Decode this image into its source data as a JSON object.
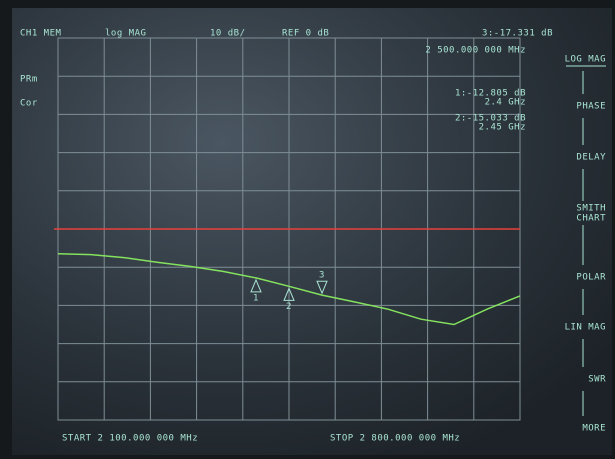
{
  "chart_data": {
    "type": "line",
    "header": {
      "channel": "CH1 MEM",
      "format": "log MAG",
      "scale": "10 dB/",
      "reference": "REF 0 dB",
      "active_marker": "3:-17.331 dB",
      "active_marker_freq": "2 500.000 000 MHz"
    },
    "status": [
      "PRm",
      "Cor"
    ],
    "start_label": "START 2 100.000 000 MHz",
    "stop_label": "STOP 2 800.000 000 MHz",
    "xlim": [
      2100,
      2800
    ],
    "ylim": [
      -50,
      50
    ],
    "reference_line": {
      "value": 0,
      "color": "#e8403a"
    },
    "series": [
      {
        "color": "#84e25e",
        "x": [
          2100,
          2150,
          2200,
          2250,
          2300,
          2350,
          2400,
          2450,
          2500,
          2550,
          2600,
          2650,
          2700,
          2750,
          2800
        ],
        "values": [
          -6.5,
          -6.7,
          -7.5,
          -8.7,
          -9.8,
          -11.1,
          -12.8,
          -15.0,
          -17.3,
          -19.1,
          -21.0,
          -23.6,
          -25.0,
          -21.0,
          -17.5
        ]
      }
    ],
    "markers": [
      {
        "label": "1",
        "x": 2400,
        "value": -12.805,
        "readout": "1:-12.805 dB",
        "freq": "2.4 GHz"
      },
      {
        "label": "2",
        "x": 2450,
        "value": -15.033,
        "readout": "2:-15.033 dB",
        "freq": "2.45 GHz"
      },
      {
        "label": "3",
        "x": 2500,
        "value": -17.331
      }
    ],
    "softkeys": [
      [
        "LOG MAG"
      ],
      [
        "PHASE"
      ],
      [
        "DELAY"
      ],
      [
        "SMITH",
        "CHART"
      ],
      [
        "POLAR"
      ],
      [
        "LIN MAG"
      ],
      [
        "SWR"
      ],
      [
        "MORE"
      ]
    ]
  }
}
